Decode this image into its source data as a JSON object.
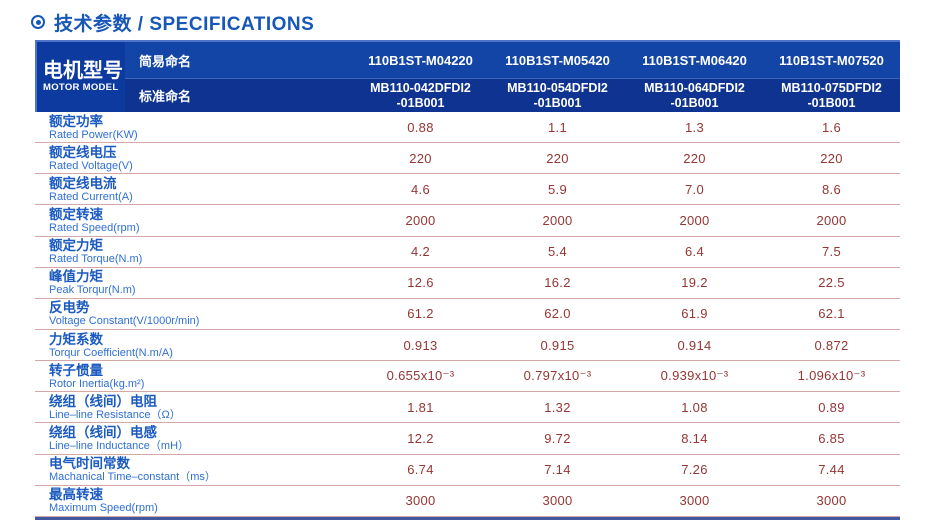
{
  "title": {
    "icon": "circle-dot",
    "text": "技术参数 / SPECIFICATIONS",
    "accent_color": "#1757b8"
  },
  "colors": {
    "header_bg_top": "#1345a6",
    "header_bg_bottom": "#0e3390",
    "header_left_bg": "#0d3a9e",
    "label_blue": "#1b5ac1",
    "sublabel_blue": "#2f6fd6",
    "value_red": "#943634",
    "row_divider": "#d5a8a8",
    "table_bottom_border": "#41589f"
  },
  "table": {
    "header": {
      "motor_model_zh": "电机型号",
      "motor_model_en": "MOTOR MODEL",
      "simple_name_label": "简易命名",
      "standard_name_label": "标准命名",
      "columns": [
        {
          "simple": "110B1ST-M04220",
          "standard": "MB110-042DFDI2\n-01B001"
        },
        {
          "simple": "110B1ST-M05420",
          "standard": "MB110-054DFDI2\n-01B001"
        },
        {
          "simple": "110B1ST-M06420",
          "standard": "MB110-064DFDI2\n-01B001"
        },
        {
          "simple": "110B1ST-M07520",
          "standard": "MB110-075DFDI2\n-01B001"
        }
      ]
    },
    "rows": [
      {
        "zh": "额定功率",
        "en": "Rated Power(KW)",
        "values": [
          "0.88",
          "1.1",
          "1.3",
          "1.6"
        ]
      },
      {
        "zh": "额定线电压",
        "en": "Rated Voltage(V)",
        "values": [
          "220",
          "220",
          "220",
          "220"
        ]
      },
      {
        "zh": "额定线电流",
        "en": "Rated Current(A)",
        "values": [
          "4.6",
          "5.9",
          "7.0",
          "8.6"
        ]
      },
      {
        "zh": "额定转速",
        "en": "Rated Speed(rpm)",
        "values": [
          "2000",
          "2000",
          "2000",
          "2000"
        ]
      },
      {
        "zh": "额定力矩",
        "en": "Rated Torque(N.m)",
        "values": [
          "4.2",
          "5.4",
          "6.4",
          "7.5"
        ]
      },
      {
        "zh": "峰值力矩",
        "en": "Peak Torqur(N.m)",
        "values": [
          "12.6",
          "16.2",
          "19.2",
          "22.5"
        ]
      },
      {
        "zh": "反电势",
        "en": "Voltage Constant(V/1000r/min)",
        "values": [
          "61.2",
          "62.0",
          "61.9",
          "62.1"
        ]
      },
      {
        "zh": "力矩系数",
        "en": "Torqur Coefficient(N.m/A)",
        "values": [
          "0.913",
          "0.915",
          "0.914",
          "0.872"
        ]
      },
      {
        "zh": "转子惯量",
        "en": "Rotor Inertia(kg.m²)",
        "values": [
          "0.655x10⁻³",
          "0.797x10⁻³",
          "0.939x10⁻³",
          "1.096x10⁻³"
        ]
      },
      {
        "zh": "绕组（线间）电阻",
        "en": "Line–line Resistance（Ω）",
        "values": [
          "1.81",
          "1.32",
          "1.08",
          "0.89"
        ]
      },
      {
        "zh": "绕组（线间）电感",
        "en": "Line–line Inductance（mH）",
        "values": [
          "12.2",
          "9.72",
          "8.14",
          "6.85"
        ]
      },
      {
        "zh": "电气时间常数",
        "en": "Machanical Time–constant（ms）",
        "values": [
          "6.74",
          "7.14",
          "7.26",
          "7.44"
        ]
      },
      {
        "zh": "最高转速",
        "en": "Maximum Speed(rpm)",
        "values": [
          "3000",
          "3000",
          "3000",
          "3000"
        ]
      }
    ]
  }
}
